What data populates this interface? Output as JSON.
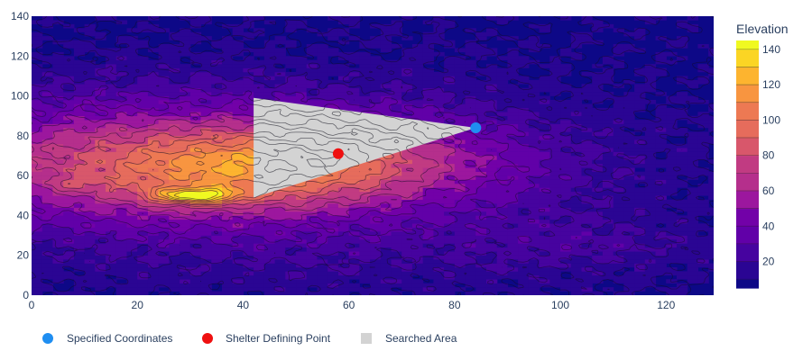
{
  "chart_data": {
    "type": "heatmap",
    "subtype": "filled-contour",
    "title": "",
    "xlabel": "",
    "ylabel": "",
    "xlim": [
      0,
      129
    ],
    "ylim": [
      0,
      140
    ],
    "x_ticks": [
      "0",
      "20",
      "40",
      "60",
      "80",
      "100",
      "120"
    ],
    "y_ticks": [
      "0",
      "20",
      "40",
      "60",
      "80",
      "100",
      "120",
      "140"
    ],
    "grid": false,
    "colorbar": {
      "title": "Elevation",
      "ticks": [
        "20",
        "40",
        "60",
        "80",
        "100",
        "120",
        "140"
      ],
      "range": [
        5,
        145
      ],
      "levels": [
        10,
        20,
        30,
        40,
        50,
        60,
        70,
        80,
        90,
        100,
        110,
        120,
        130,
        140
      ],
      "colors": [
        "#0d0887",
        "#2a0593",
        "#46039f",
        "#6100a8",
        "#7201a8",
        "#9c179e",
        "#b52f8c",
        "#c13b82",
        "#d8576b",
        "#e66c5c",
        "#ed7953",
        "#f89540",
        "#fdb42f",
        "#fbd524",
        "#f0f921"
      ]
    },
    "peaks": [
      {
        "x": 31,
        "y": 50,
        "z": 145
      },
      {
        "x": 8,
        "y": 56,
        "z": 92
      },
      {
        "x": 60,
        "y": 68,
        "z": 95
      }
    ],
    "searched_area": {
      "name": "Searched Area",
      "color": "#d3d3d3",
      "polygon": [
        [
          42,
          99
        ],
        [
          42,
          49
        ],
        [
          84,
          84
        ]
      ]
    },
    "series": [
      {
        "name": "Specified Coordinates",
        "type": "scatter",
        "color": "#1f8ef1",
        "points": [
          [
            84,
            84
          ]
        ]
      },
      {
        "name": "Shelter Defining Point",
        "type": "scatter",
        "color": "#ef1010",
        "points": [
          [
            58,
            71
          ]
        ]
      }
    ],
    "legend": {
      "placement": "bottom",
      "items": [
        {
          "label": "Specified Coordinates",
          "marker": "circle",
          "color": "#1f8ef1"
        },
        {
          "label": "Shelter Defining Point",
          "marker": "circle",
          "color": "#ef1010"
        },
        {
          "label": "Searched Area",
          "marker": "square",
          "color": "#d3d3d3"
        }
      ]
    }
  }
}
